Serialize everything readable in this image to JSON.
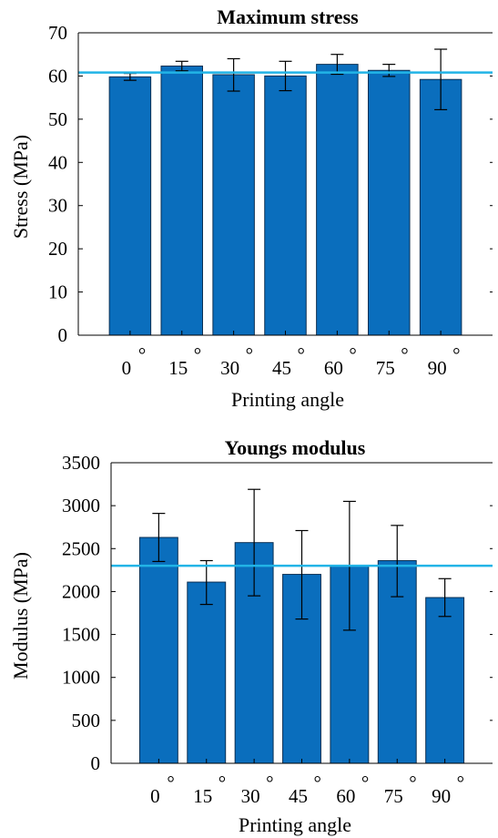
{
  "colors": {
    "bar": "#0a6ebd",
    "bar_edge": "#0b2f52",
    "mean_line": "#22b4e6",
    "axis": "#000000",
    "background": "#ffffff"
  },
  "chart_data": [
    {
      "type": "bar",
      "title": "Maximum stress",
      "xlabel": "Printing angle",
      "ylabel": "Stress (MPa)",
      "categories": [
        "0",
        "15",
        "30",
        "45",
        "60",
        "75",
        "90"
      ],
      "category_suffix": "°",
      "values": [
        59.8,
        62.3,
        60.3,
        60.0,
        62.7,
        61.3,
        59.2
      ],
      "error_low": [
        59.0,
        61.2,
        56.5,
        56.6,
        60.4,
        59.9,
        52.2
      ],
      "error_high": [
        60.6,
        63.4,
        64.0,
        63.4,
        65.0,
        62.7,
        66.2
      ],
      "mean_line": 60.8,
      "ylim": [
        0,
        70
      ],
      "yticks": [
        0,
        10,
        20,
        30,
        40,
        50,
        60,
        70
      ],
      "grid": false
    },
    {
      "type": "bar",
      "title": "Youngs modulus",
      "xlabel": "Printing angle",
      "ylabel": "Modulus (MPa)",
      "categories": [
        "0",
        "15",
        "30",
        "45",
        "60",
        "75",
        "90"
      ],
      "category_suffix": "°",
      "values": [
        2630,
        2110,
        2570,
        2200,
        2300,
        2360,
        1930
      ],
      "error_low": [
        2350,
        1850,
        1950,
        1680,
        1550,
        1940,
        1710
      ],
      "error_high": [
        2910,
        2360,
        3190,
        2710,
        3050,
        2770,
        2150
      ],
      "mean_line": 2300,
      "ylim": [
        0,
        3500
      ],
      "yticks": [
        0,
        500,
        1000,
        1500,
        2000,
        2500,
        3000,
        3500
      ],
      "grid": false
    }
  ]
}
